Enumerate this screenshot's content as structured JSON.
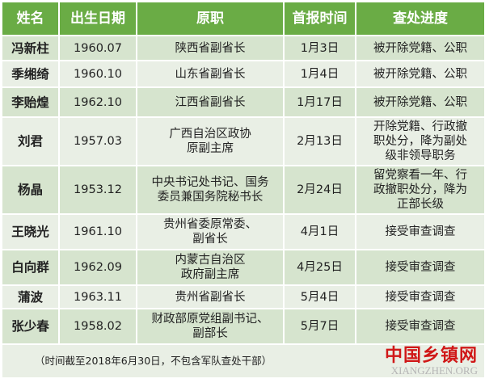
{
  "headers": [
    "姓名",
    "出生日期",
    "原职",
    "首报时间",
    "查处进度"
  ],
  "rows": [
    {
      "name": "冯新柱",
      "birth": "1960.07",
      "post": [
        "陕西省副省长"
      ],
      "date": "1月3日",
      "progress": [
        "被开除党籍、公职"
      ]
    },
    {
      "name": "季缃绮",
      "birth": "1960.10",
      "post": [
        "山东省副省长"
      ],
      "date": "1月4日",
      "progress": [
        "被开除党籍、公职"
      ]
    },
    {
      "name": "李贻煌",
      "birth": "1962.10",
      "post": [
        "江西省副省长"
      ],
      "date": "1月17日",
      "progress": [
        "被开除党籍、公职"
      ]
    },
    {
      "name": "刘君",
      "birth": "1957.03",
      "post": [
        "广西自治区政协",
        "原副主席"
      ],
      "date": "2月13日",
      "progress": [
        "开除党籍、行政撤",
        "职处分，降为副处",
        "级非领导职务"
      ]
    },
    {
      "name": "杨晶",
      "birth": "1953.12",
      "post": [
        "中央书记处书记、国务",
        "委员兼国务院秘书长"
      ],
      "date": "2月24日",
      "progress": [
        "留党察看一年、行",
        "政撤职处分，降为",
        "正部长级"
      ]
    },
    {
      "name": "王晓光",
      "birth": "1961.10",
      "post": [
        "贵州省委原常委、",
        "副省长"
      ],
      "date": "4月1日",
      "progress": [
        "接受审查调查"
      ]
    },
    {
      "name": "白向群",
      "birth": "1962.09",
      "post": [
        "内蒙古自治区",
        "政府副主席"
      ],
      "date": "4月25日",
      "progress": [
        "接受审查调查"
      ]
    },
    {
      "name": "蒲波",
      "birth": "1963.11",
      "post": [
        "贵州省副省长"
      ],
      "date": "5月4日",
      "progress": [
        "接受审查调查"
      ]
    },
    {
      "name": "张少春",
      "birth": "1958.02",
      "post": [
        "财政部原党组副书记、",
        "副部长"
      ],
      "date": "5月7日",
      "progress": [
        "接受审查调查"
      ]
    }
  ],
  "footnote": "（时间截至2018年6月30日，不包含军队查处干部）",
  "watermark": {
    "cn": "中国乡镇网",
    "en": "XIANGZHEN.ORG"
  },
  "colors": {
    "header": "#6aac45",
    "row_dark": "#d6e4ce",
    "row_light": "#e9efe5",
    "watermark": "#d01818"
  }
}
